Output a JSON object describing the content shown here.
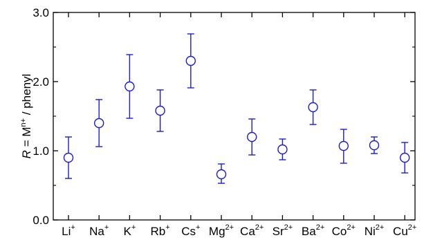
{
  "chart_data": {
    "type": "scatter",
    "ylabel": {
      "italic": "R",
      "equals": " = M",
      "superscript": "n+",
      "rest": " / phenyl"
    },
    "ylim": [
      0.0,
      3.0
    ],
    "yticks": [
      "0.0",
      "1.0",
      "2.0",
      "3.0"
    ],
    "yticks_values": [
      0,
      1,
      2,
      3
    ],
    "categories": [
      {
        "base": "Li",
        "sup": "+"
      },
      {
        "base": "Na",
        "sup": "+"
      },
      {
        "base": "K",
        "sup": "+"
      },
      {
        "base": "Rb",
        "sup": "+"
      },
      {
        "base": "Cs",
        "sup": "+"
      },
      {
        "base": "Mg",
        "sup": "2+"
      },
      {
        "base": "Ca",
        "sup": "2+"
      },
      {
        "base": "Sr",
        "sup": "2+"
      },
      {
        "base": "Ba",
        "sup": "2+"
      },
      {
        "base": "Co",
        "sup": "2+"
      },
      {
        "base": "Ni",
        "sup": "2+"
      },
      {
        "base": "Cu",
        "sup": "2+"
      }
    ],
    "values": [
      0.9,
      1.4,
      1.93,
      1.58,
      2.3,
      0.66,
      1.2,
      1.02,
      1.63,
      1.07,
      1.08,
      0.9
    ],
    "error_low": [
      0.6,
      1.06,
      1.47,
      1.28,
      1.91,
      0.53,
      0.94,
      0.87,
      1.38,
      0.82,
      0.96,
      0.68
    ],
    "error_high": [
      1.2,
      1.74,
      2.39,
      1.88,
      2.69,
      0.81,
      1.46,
      1.17,
      1.88,
      1.31,
      1.2,
      1.12
    ],
    "marker": "open-circle",
    "series_color": "#1a1ad6",
    "axis_color": "#000000",
    "grid": false
  }
}
